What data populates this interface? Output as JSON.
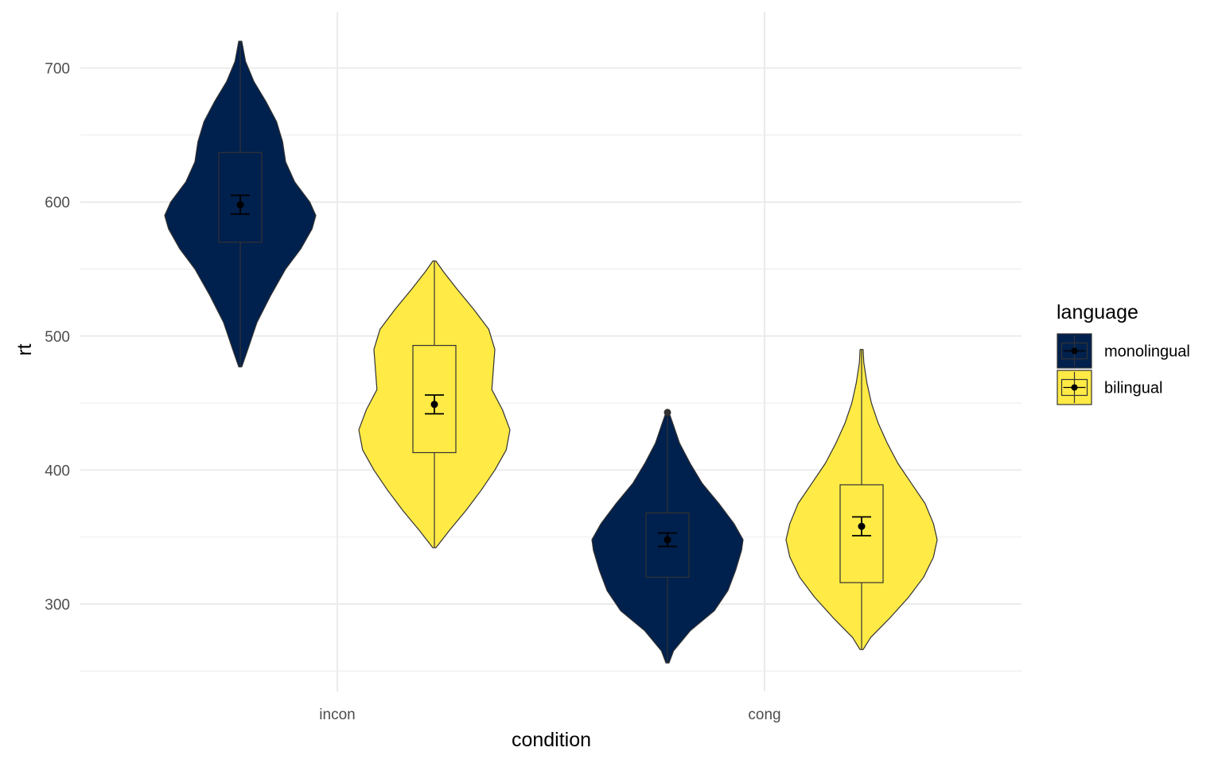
{
  "chart_data": {
    "type": "violin",
    "xlabel": "condition",
    "ylabel": "rt",
    "categories": [
      "incon",
      "cong"
    ],
    "ylim": [
      235,
      738
    ],
    "yticks": [
      300,
      400,
      500,
      600,
      700
    ],
    "grid": true,
    "legend": {
      "title": "language",
      "position": "right"
    },
    "colors": {
      "monolingual": "#00204D",
      "bilingual": "#FFEA46",
      "outline": "#333333",
      "grid": "#ebebeb"
    },
    "series": [
      {
        "name": "monolingual",
        "groups": [
          {
            "category": "incon",
            "violin_min": 477,
            "violin_max": 720,
            "density": [
              [
                477,
                0.02
              ],
              [
                490,
                0.1
              ],
              [
                510,
                0.22
              ],
              [
                530,
                0.4
              ],
              [
                550,
                0.6
              ],
              [
                565,
                0.8
              ],
              [
                580,
                0.95
              ],
              [
                590,
                1.0
              ],
              [
                600,
                0.92
              ],
              [
                615,
                0.72
              ],
              [
                630,
                0.6
              ],
              [
                645,
                0.56
              ],
              [
                660,
                0.48
              ],
              [
                675,
                0.34
              ],
              [
                690,
                0.18
              ],
              [
                705,
                0.07
              ],
              [
                720,
                0.02
              ]
            ],
            "box": {
              "q1": 570,
              "median": 598,
              "q3": 637,
              "whisker_low": 477,
              "whisker_high": 720
            },
            "mean": 598,
            "ci_low": 591,
            "ci_high": 605,
            "outliers": []
          },
          {
            "category": "cong",
            "violin_min": 256,
            "violin_max": 443,
            "density": [
              [
                256,
                0.02
              ],
              [
                265,
                0.08
              ],
              [
                280,
                0.3
              ],
              [
                295,
                0.62
              ],
              [
                310,
                0.8
              ],
              [
                325,
                0.9
              ],
              [
                340,
                0.98
              ],
              [
                348,
                1.0
              ],
              [
                360,
                0.88
              ],
              [
                375,
                0.68
              ],
              [
                390,
                0.46
              ],
              [
                405,
                0.3
              ],
              [
                420,
                0.16
              ],
              [
                435,
                0.07
              ],
              [
                443,
                0.02
              ]
            ],
            "box": {
              "q1": 320,
              "median": 342,
              "q3": 368,
              "whisker_low": 256,
              "whisker_high": 443
            },
            "mean": 348,
            "ci_low": 343,
            "ci_high": 353,
            "outliers": [
              443
            ]
          }
        ]
      },
      {
        "name": "bilingual",
        "groups": [
          {
            "category": "incon",
            "violin_min": 342,
            "violin_max": 556,
            "density": [
              [
                342,
                0.02
              ],
              [
                355,
                0.2
              ],
              [
                370,
                0.42
              ],
              [
                385,
                0.62
              ],
              [
                400,
                0.8
              ],
              [
                415,
                0.95
              ],
              [
                430,
                1.0
              ],
              [
                445,
                0.9
              ],
              [
                460,
                0.76
              ],
              [
                475,
                0.78
              ],
              [
                490,
                0.8
              ],
              [
                505,
                0.72
              ],
              [
                520,
                0.52
              ],
              [
                535,
                0.3
              ],
              [
                548,
                0.12
              ],
              [
                556,
                0.02
              ]
            ],
            "box": {
              "q1": 413,
              "median": 449,
              "q3": 493,
              "whisker_low": 342,
              "whisker_high": 556
            },
            "mean": 449,
            "ci_low": 442,
            "ci_high": 456,
            "outliers": []
          },
          {
            "category": "cong",
            "violin_min": 266,
            "violin_max": 490,
            "density": [
              [
                266,
                0.02
              ],
              [
                275,
                0.12
              ],
              [
                290,
                0.38
              ],
              [
                305,
                0.62
              ],
              [
                320,
                0.82
              ],
              [
                335,
                0.95
              ],
              [
                348,
                1.0
              ],
              [
                360,
                0.95
              ],
              [
                375,
                0.84
              ],
              [
                390,
                0.66
              ],
              [
                405,
                0.48
              ],
              [
                420,
                0.34
              ],
              [
                435,
                0.22
              ],
              [
                450,
                0.13
              ],
              [
                465,
                0.07
              ],
              [
                480,
                0.03
              ],
              [
                490,
                0.02
              ]
            ],
            "box": {
              "q1": 316,
              "median": 340,
              "q3": 389,
              "whisker_low": 266,
              "whisker_high": 490
            },
            "mean": 358,
            "ci_low": 351,
            "ci_high": 365,
            "outliers": []
          }
        ]
      }
    ]
  }
}
